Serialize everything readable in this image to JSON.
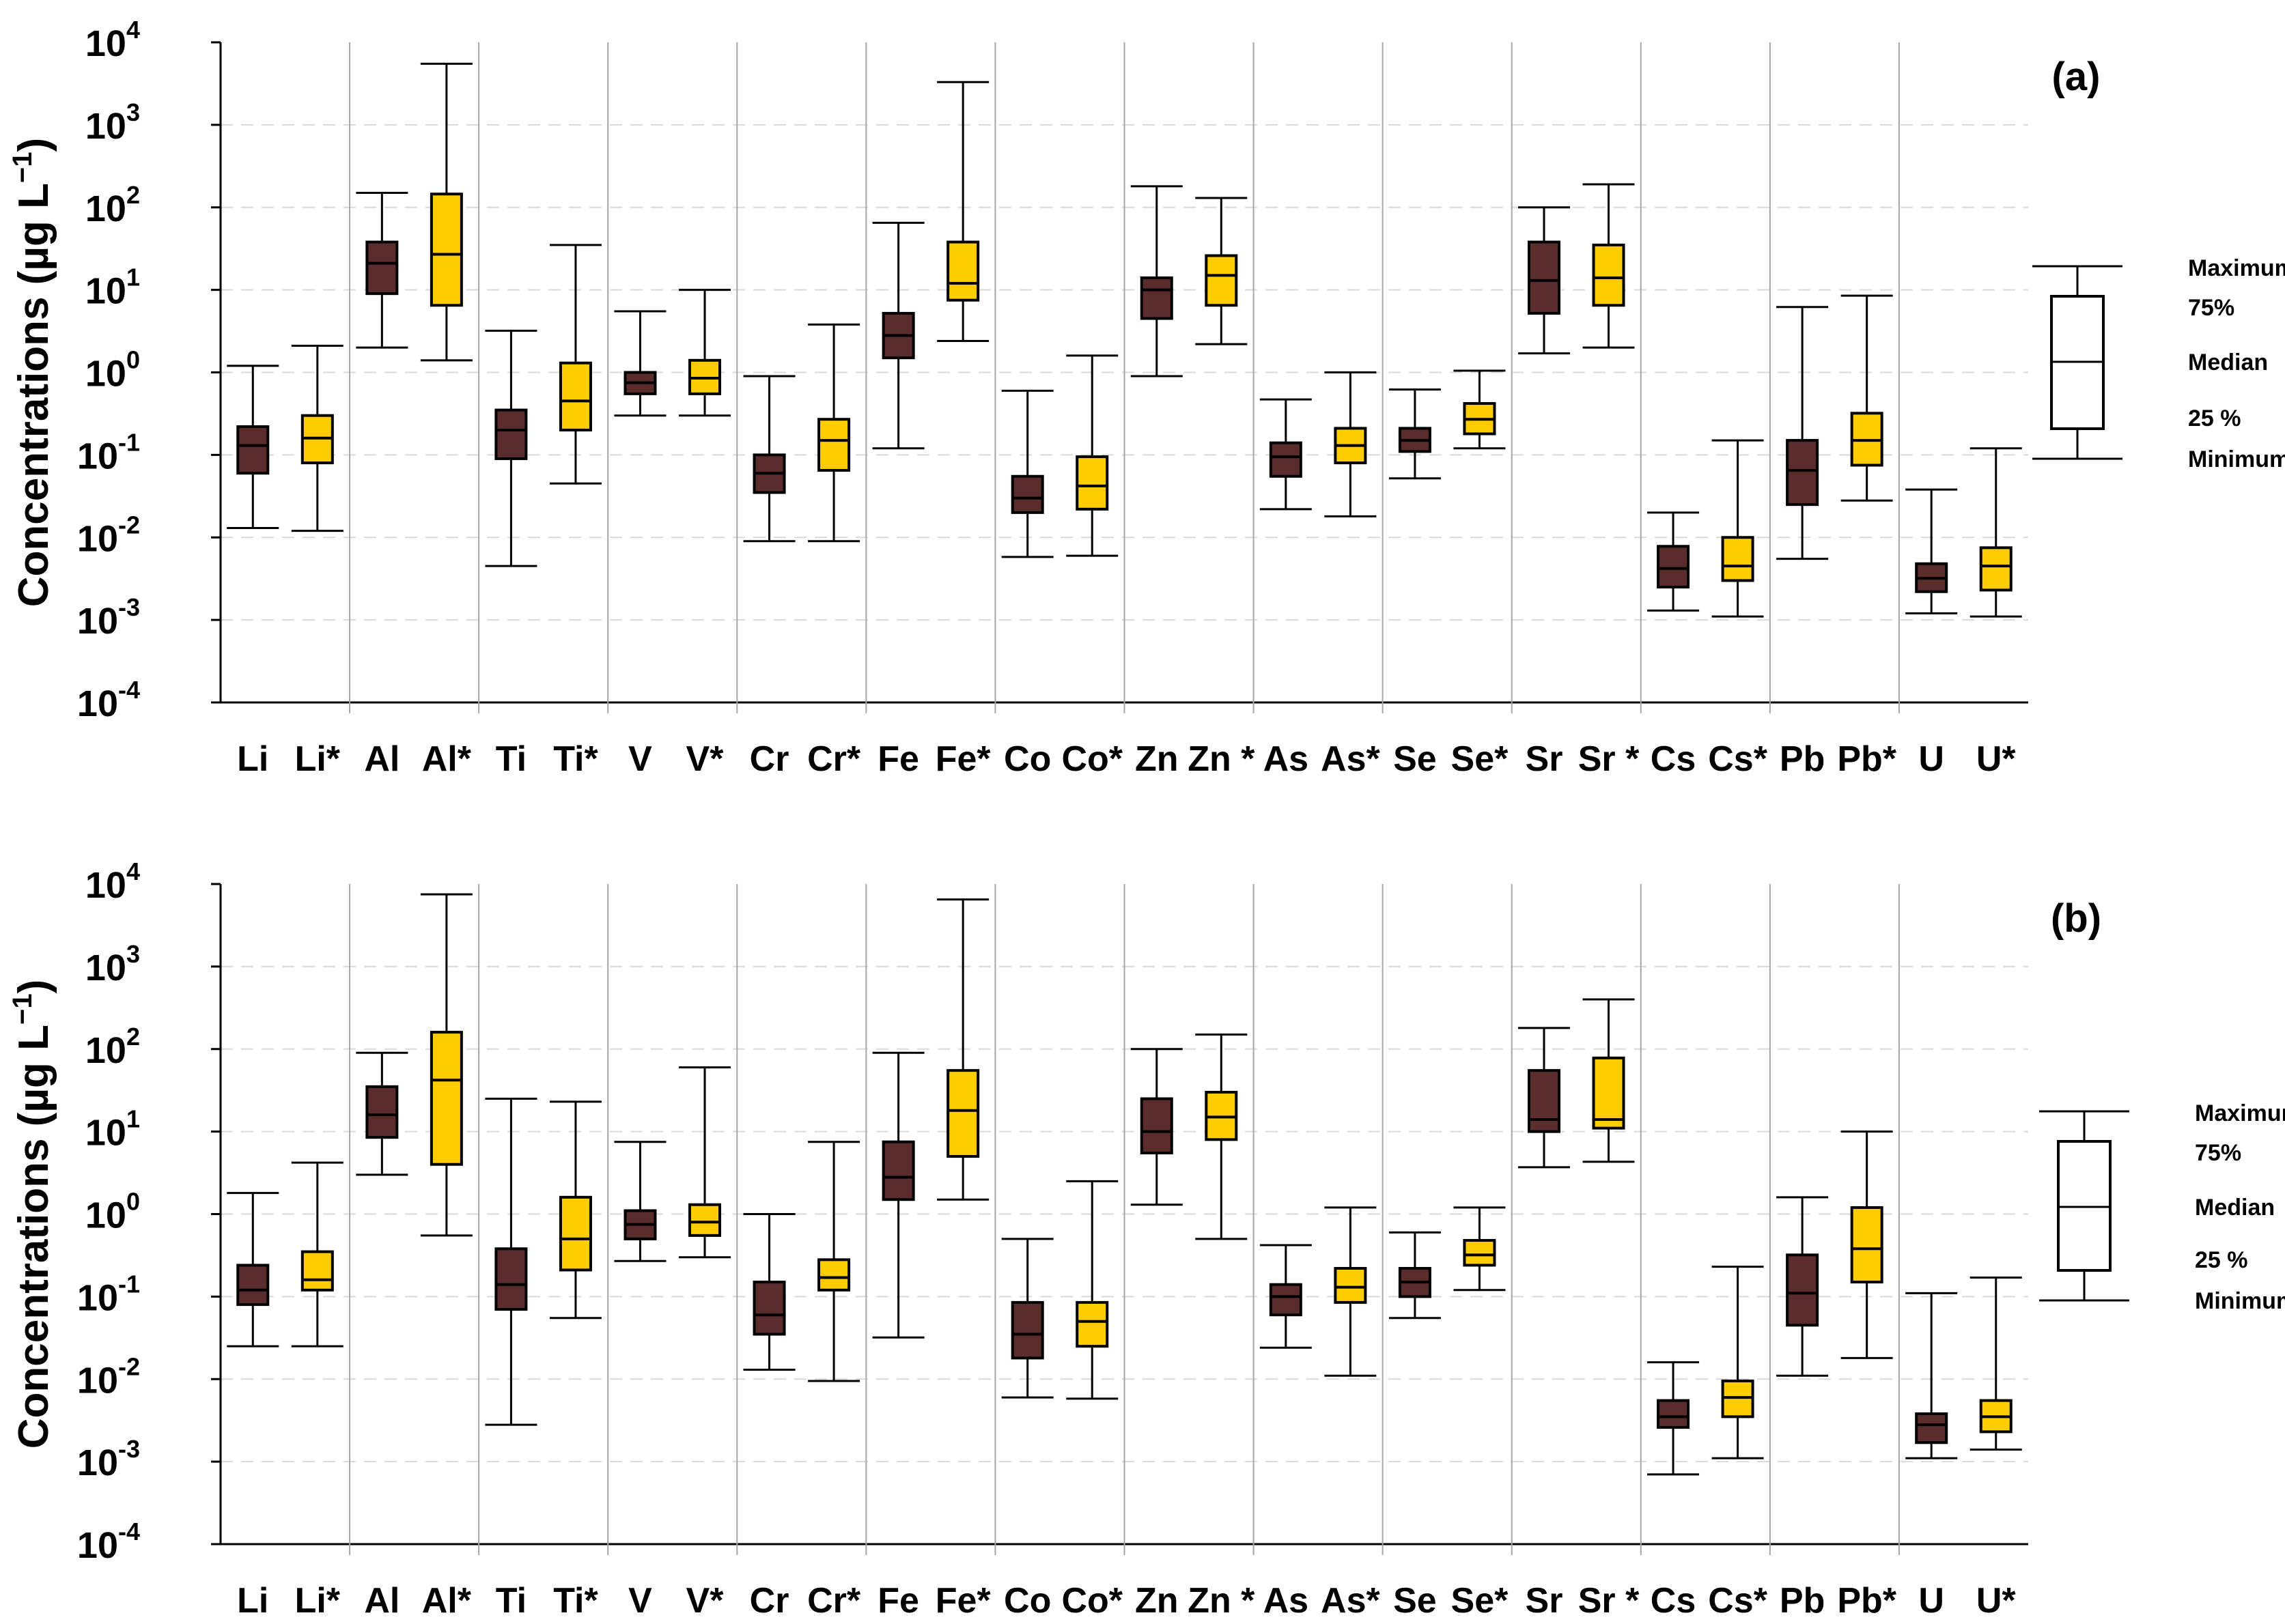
{
  "colors": {
    "original": "#5b2c2c",
    "starred": "#ffcc00",
    "grid": "#d9d9d9",
    "separator": "#a6a6a6"
  },
  "chart_data": [
    {
      "type": "box",
      "panel_label": "(a)",
      "ylabel_main": "Concentrations (µg L",
      "ylabel_sup": "−1",
      "ylabel_close": ")",
      "yscale": "log",
      "ylim": [
        0.0001,
        10000
      ],
      "grid": true,
      "tick_labels": [
        {
          "base": "10",
          "exp": "4"
        },
        {
          "base": "10",
          "exp": "3"
        },
        {
          "base": "10",
          "exp": "2"
        },
        {
          "base": "10",
          "exp": "1"
        },
        {
          "base": "10",
          "exp": "0"
        },
        {
          "base": "10",
          "exp": "-1"
        },
        {
          "base": "10",
          "exp": "-2"
        },
        {
          "base": "10",
          "exp": "-3"
        },
        {
          "base": "10",
          "exp": "-4"
        }
      ],
      "categories": [
        "Li",
        "Li*",
        "Al",
        "Al*",
        "Ti",
        "Ti*",
        "V",
        "V*",
        "Cr",
        "Cr*",
        "Fe",
        "Fe*",
        "Co",
        "Co*",
        "Zn",
        "Zn *",
        "As",
        "As*",
        "Se",
        "Se*",
        "Sr",
        "Sr *",
        "Cs",
        "Cs*",
        "Pb",
        "Pb*",
        "U",
        "U*"
      ],
      "legend": {
        "max": "Maximum",
        "q3": "75%",
        "median": "Median",
        "q1": "25 %",
        "min": "Minimum"
      },
      "boxes": [
        {
          "min": 0.013,
          "q1": 0.06,
          "median": 0.13,
          "q3": 0.22,
          "max": 1.2
        },
        {
          "min": 0.012,
          "q1": 0.08,
          "median": 0.16,
          "q3": 0.3,
          "max": 2.1
        },
        {
          "min": 2,
          "q1": 9,
          "median": 21,
          "q3": 38,
          "max": 150
        },
        {
          "min": 1.4,
          "q1": 6.5,
          "median": 27,
          "q3": 145,
          "max": 5500
        },
        {
          "min": 0.0045,
          "q1": 0.09,
          "median": 0.2,
          "q3": 0.35,
          "max": 3.2
        },
        {
          "min": 0.045,
          "q1": 0.2,
          "median": 0.45,
          "q3": 1.3,
          "max": 35
        },
        {
          "min": 0.3,
          "q1": 0.55,
          "median": 0.75,
          "q3": 1.0,
          "max": 5.5
        },
        {
          "min": 0.3,
          "q1": 0.55,
          "median": 0.85,
          "q3": 1.4,
          "max": 10
        },
        {
          "min": 0.009,
          "q1": 0.035,
          "median": 0.06,
          "q3": 0.1,
          "max": 0.9
        },
        {
          "min": 0.009,
          "q1": 0.065,
          "median": 0.15,
          "q3": 0.27,
          "max": 3.8
        },
        {
          "min": 0.12,
          "q1": 1.5,
          "median": 2.8,
          "q3": 5.2,
          "max": 65
        },
        {
          "min": 2.4,
          "q1": 7.5,
          "median": 12,
          "q3": 38,
          "max": 3300
        },
        {
          "min": 0.0058,
          "q1": 0.02,
          "median": 0.03,
          "q3": 0.055,
          "max": 0.6
        },
        {
          "min": 0.006,
          "q1": 0.022,
          "median": 0.042,
          "q3": 0.095,
          "max": 1.6
        },
        {
          "min": 0.9,
          "q1": 4.5,
          "median": 10,
          "q3": 14,
          "max": 180
        },
        {
          "min": 2.2,
          "q1": 6.5,
          "median": 15,
          "q3": 26,
          "max": 130
        },
        {
          "min": 0.022,
          "q1": 0.055,
          "median": 0.095,
          "q3": 0.14,
          "max": 0.47
        },
        {
          "min": 0.018,
          "q1": 0.08,
          "median": 0.13,
          "q3": 0.21,
          "max": 1.0
        },
        {
          "min": 0.052,
          "q1": 0.11,
          "median": 0.15,
          "q3": 0.21,
          "max": 0.62
        },
        {
          "min": 0.12,
          "q1": 0.18,
          "median": 0.27,
          "q3": 0.42,
          "max": 1.05
        },
        {
          "min": 1.7,
          "q1": 5.2,
          "median": 13,
          "q3": 38,
          "max": 100
        },
        {
          "min": 2,
          "q1": 6.5,
          "median": 14,
          "q3": 35,
          "max": 190
        },
        {
          "min": 0.0013,
          "q1": 0.0025,
          "median": 0.0042,
          "q3": 0.0078,
          "max": 0.02
        },
        {
          "min": 0.0011,
          "q1": 0.003,
          "median": 0.0045,
          "q3": 0.01,
          "max": 0.15
        },
        {
          "min": 0.0055,
          "q1": 0.025,
          "median": 0.065,
          "q3": 0.15,
          "max": 6.2
        },
        {
          "min": 0.028,
          "q1": 0.075,
          "median": 0.15,
          "q3": 0.32,
          "max": 8.5
        },
        {
          "min": 0.0012,
          "q1": 0.0022,
          "median": 0.0032,
          "q3": 0.0048,
          "max": 0.038
        },
        {
          "min": 0.0011,
          "q1": 0.0023,
          "median": 0.0045,
          "q3": 0.0075,
          "max": 0.12
        }
      ]
    },
    {
      "type": "box",
      "panel_label": "(b)",
      "ylabel_main": "Concentrations (µg L",
      "ylabel_sup": "−1",
      "ylabel_close": ")",
      "yscale": "log",
      "ylim": [
        0.0001,
        10000
      ],
      "grid": true,
      "tick_labels": [
        {
          "base": "10",
          "exp": "4"
        },
        {
          "base": "10",
          "exp": "3"
        },
        {
          "base": "10",
          "exp": "2"
        },
        {
          "base": "10",
          "exp": "1"
        },
        {
          "base": "10",
          "exp": "0"
        },
        {
          "base": "10",
          "exp": "-1"
        },
        {
          "base": "10",
          "exp": "-2"
        },
        {
          "base": "10",
          "exp": "-3"
        },
        {
          "base": "10",
          "exp": "-4"
        }
      ],
      "categories": [
        "Li",
        "Li*",
        "Al",
        "Al*",
        "Ti",
        "Ti*",
        "V",
        "V*",
        "Cr",
        "Cr*",
        "Fe",
        "Fe*",
        "Co",
        "Co*",
        "Zn",
        "Zn *",
        "As",
        "As*",
        "Se",
        "Se*",
        "Sr",
        "Sr *",
        "Cs",
        "Cs*",
        "Pb",
        "Pb*",
        "U",
        "U*"
      ],
      "legend": {
        "max": "Maximum",
        "q3": "75%",
        "median": "Median",
        "q1": "25 %",
        "min": "Minimum"
      },
      "boxes": [
        {
          "min": 0.025,
          "q1": 0.08,
          "median": 0.12,
          "q3": 0.24,
          "max": 1.8
        },
        {
          "min": 0.025,
          "q1": 0.12,
          "median": 0.16,
          "q3": 0.35,
          "max": 4.2
        },
        {
          "min": 3,
          "q1": 8.5,
          "median": 16,
          "q3": 35,
          "max": 90
        },
        {
          "min": 0.55,
          "q1": 4,
          "median": 42,
          "q3": 160,
          "max": 7500
        },
        {
          "min": 0.0028,
          "q1": 0.07,
          "median": 0.14,
          "q3": 0.38,
          "max": 25
        },
        {
          "min": 0.055,
          "q1": 0.21,
          "median": 0.5,
          "q3": 1.6,
          "max": 23
        },
        {
          "min": 0.27,
          "q1": 0.5,
          "median": 0.75,
          "q3": 1.1,
          "max": 7.5
        },
        {
          "min": 0.3,
          "q1": 0.55,
          "median": 0.8,
          "q3": 1.3,
          "max": 60
        },
        {
          "min": 0.013,
          "q1": 0.035,
          "median": 0.06,
          "q3": 0.15,
          "max": 1.0
        },
        {
          "min": 0.0095,
          "q1": 0.12,
          "median": 0.17,
          "q3": 0.28,
          "max": 7.5
        },
        {
          "min": 0.032,
          "q1": 1.5,
          "median": 2.8,
          "q3": 7.5,
          "max": 90
        },
        {
          "min": 1.5,
          "q1": 5,
          "median": 18,
          "q3": 55,
          "max": 6500
        },
        {
          "min": 0.006,
          "q1": 0.018,
          "median": 0.035,
          "q3": 0.085,
          "max": 0.5
        },
        {
          "min": 0.0058,
          "q1": 0.025,
          "median": 0.05,
          "q3": 0.085,
          "max": 2.5
        },
        {
          "min": 1.3,
          "q1": 5.5,
          "median": 10,
          "q3": 25,
          "max": 100
        },
        {
          "min": 0.5,
          "q1": 8,
          "median": 15,
          "q3": 30,
          "max": 150
        },
        {
          "min": 0.024,
          "q1": 0.06,
          "median": 0.1,
          "q3": 0.14,
          "max": 0.42
        },
        {
          "min": 0.011,
          "q1": 0.085,
          "median": 0.13,
          "q3": 0.22,
          "max": 1.2
        },
        {
          "min": 0.055,
          "q1": 0.1,
          "median": 0.15,
          "q3": 0.22,
          "max": 0.6
        },
        {
          "min": 0.12,
          "q1": 0.24,
          "median": 0.32,
          "q3": 0.48,
          "max": 1.2
        },
        {
          "min": 3.7,
          "q1": 10,
          "median": 14,
          "q3": 55,
          "max": 180
        },
        {
          "min": 4.3,
          "q1": 11,
          "median": 14,
          "q3": 78,
          "max": 400
        },
        {
          "min": 0.0007,
          "q1": 0.0026,
          "median": 0.0035,
          "q3": 0.0055,
          "max": 0.016
        },
        {
          "min": 0.0011,
          "q1": 0.0035,
          "median": 0.006,
          "q3": 0.0095,
          "max": 0.23
        },
        {
          "min": 0.011,
          "q1": 0.045,
          "median": 0.11,
          "q3": 0.32,
          "max": 1.6
        },
        {
          "min": 0.018,
          "q1": 0.15,
          "median": 0.38,
          "q3": 1.2,
          "max": 10
        },
        {
          "min": 0.0011,
          "q1": 0.0017,
          "median": 0.0028,
          "q3": 0.0038,
          "max": 0.11
        },
        {
          "min": 0.0014,
          "q1": 0.0023,
          "median": 0.0035,
          "q3": 0.0055,
          "max": 0.17
        }
      ]
    }
  ]
}
